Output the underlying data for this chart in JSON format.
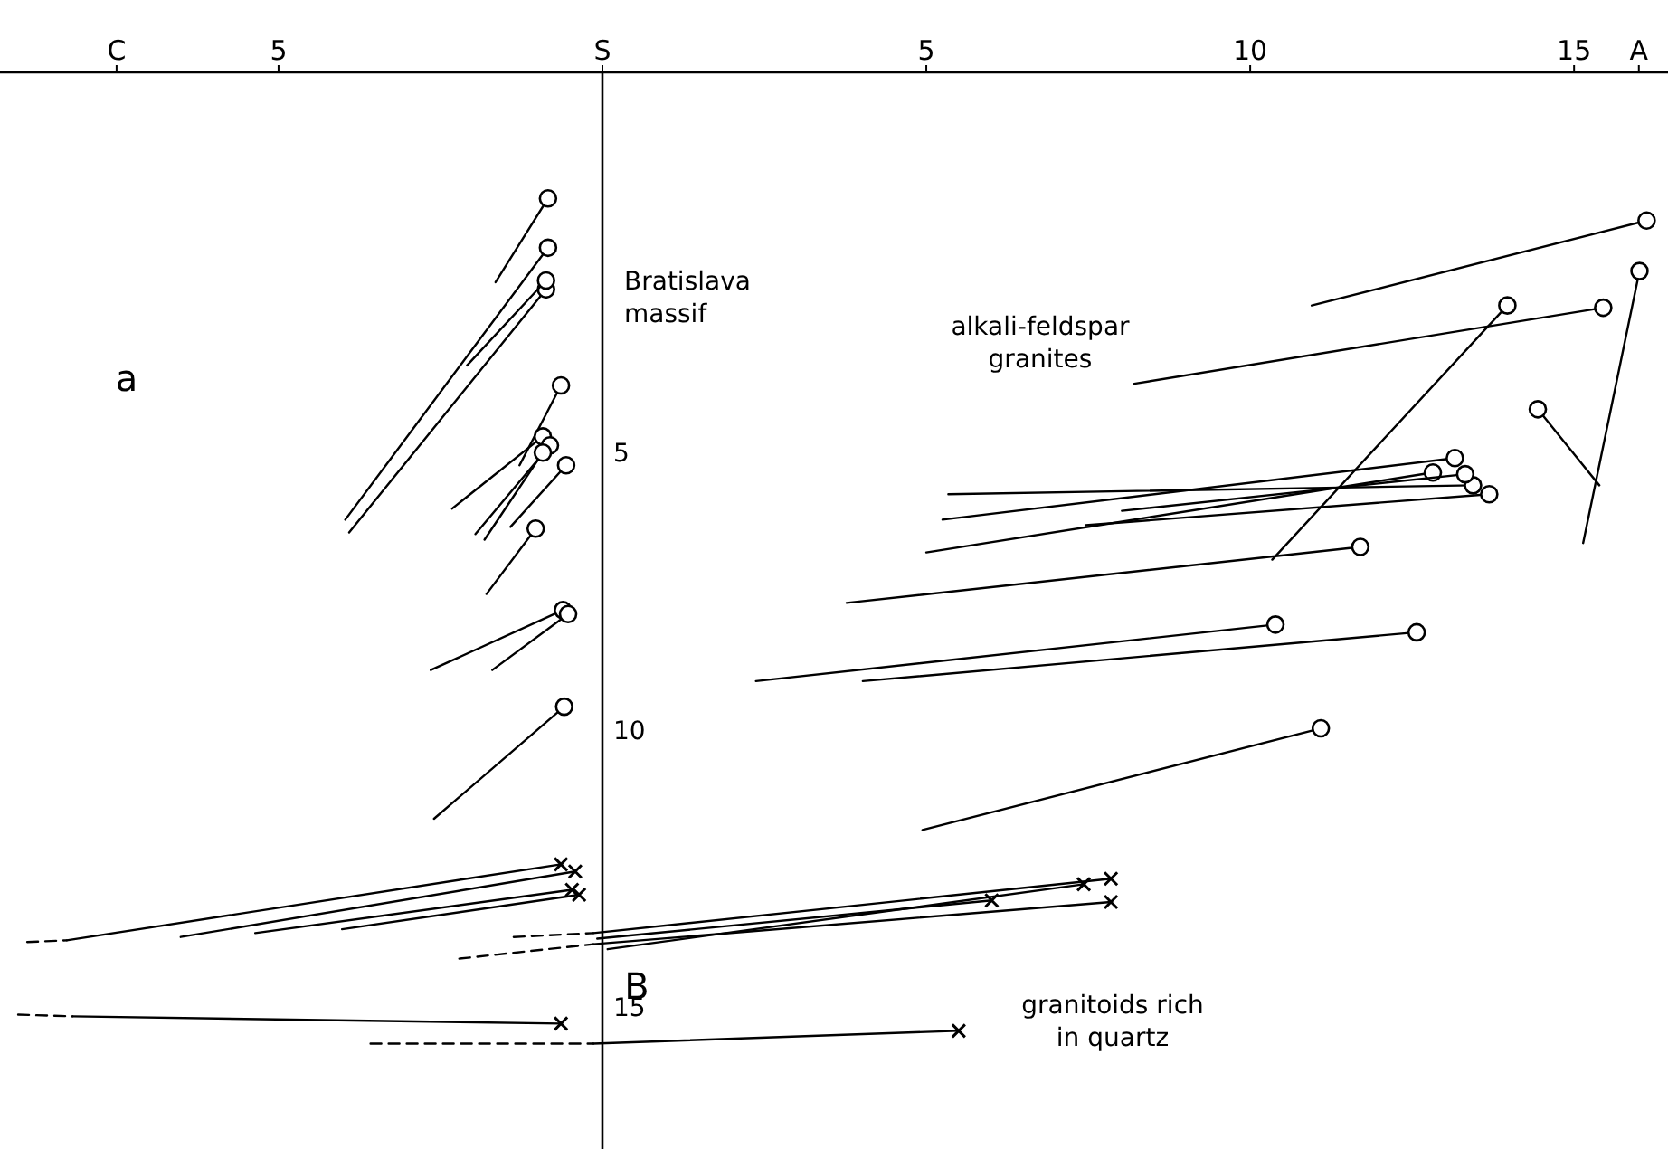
{
  "chart_data": {
    "type": "line",
    "xlim": [
      -9.3,
      16.45
    ],
    "ylim": [
      17.55,
      -1.85
    ],
    "xticks": [
      {
        "value": -7.5,
        "label": "C"
      },
      {
        "value": -5,
        "label": "5"
      },
      {
        "value": 0,
        "label": "S"
      },
      5,
      10,
      15,
      {
        "value": 16,
        "label": "A"
      }
    ],
    "yticks": [
      5,
      10,
      15
    ],
    "grid": false,
    "line_style": "solid",
    "annotations": [
      "Bratislava\nmassif",
      "alkali-feldspar\ngranites",
      "granitoids rich\nin quartz",
      "B",
      "a"
    ],
    "series": [
      {
        "color": "#000000",
        "marker": "circle",
        "x": [
          -1.65,
          -0.84
        ],
        "values": [
          1.93,
          0.42
        ]
      },
      {
        "color": "#000000",
        "marker": "circle",
        "x": [
          -3.97,
          -0.84
        ],
        "values": [
          6.21,
          1.31
        ]
      },
      {
        "color": "#000000",
        "marker": "circle",
        "x": [
          -3.91,
          -0.87
        ],
        "values": [
          6.44,
          2.06
        ]
      },
      {
        "color": "#000000",
        "marker": "circle",
        "x": [
          -2.09,
          -0.87
        ],
        "values": [
          3.43,
          1.9
        ]
      },
      {
        "color": "#000000",
        "marker": "circle",
        "x": [
          -1.28,
          -0.64
        ],
        "values": [
          5.23,
          3.79
        ]
      },
      {
        "color": "#000000",
        "marker": "circle",
        "x": [
          -2.32,
          -0.92
        ],
        "values": [
          6.01,
          4.71
        ]
      },
      {
        "color": "#000000",
        "marker": "circle",
        "x": [
          -1.96,
          -0.81
        ],
        "values": [
          6.47,
          4.87
        ]
      },
      {
        "color": "#000000",
        "marker": "circle",
        "x": [
          -1.82,
          -0.92
        ],
        "values": [
          6.57,
          5.0
        ]
      },
      {
        "color": "#000000",
        "marker": "circle",
        "x": [
          -1.42,
          -0.56
        ],
        "values": [
          6.34,
          5.23
        ]
      },
      {
        "color": "#000000",
        "marker": "circle",
        "x": [
          -1.79,
          -1.03
        ],
        "values": [
          7.55,
          6.37
        ]
      },
      {
        "color": "#000000",
        "marker": "circle",
        "x": [
          -2.65,
          -0.61
        ],
        "values": [
          8.92,
          7.84
        ]
      },
      {
        "color": "#000000",
        "marker": "circle",
        "x": [
          -1.7,
          -0.53
        ],
        "values": [
          8.92,
          7.91
        ]
      },
      {
        "color": "#000000",
        "marker": "circle",
        "x": [
          -2.6,
          -0.59
        ],
        "values": [
          11.6,
          9.58
        ]
      },
      {
        "color": "#000000",
        "marker": "circle",
        "x": [
          10.95,
          16.12
        ],
        "values": [
          2.35,
          0.82
        ]
      },
      {
        "color": "#000000",
        "marker": "circle",
        "x": [
          8.21,
          15.45
        ],
        "values": [
          3.76,
          2.39
        ]
      },
      {
        "color": "#000000",
        "marker": "circle",
        "x": [
          10.34,
          13.97
        ],
        "values": [
          6.93,
          2.35
        ]
      },
      {
        "color": "#000000",
        "marker": "circle",
        "x": [
          15.14,
          16.01
        ],
        "values": [
          6.63,
          1.73
        ]
      },
      {
        "color": "#000000",
        "marker": "circle",
        "x": [
          15.39,
          14.44
        ],
        "values": [
          5.59,
          4.22
        ]
      },
      {
        "color": "#000000",
        "marker": "circle",
        "x": [
          5.34,
          13.44
        ],
        "values": [
          5.75,
          5.59
        ]
      },
      {
        "color": "#000000",
        "marker": "circle",
        "x": [
          5.25,
          13.16
        ],
        "values": [
          6.21,
          5.1
        ]
      },
      {
        "color": "#000000",
        "marker": "circle",
        "x": [
          5.0,
          12.82
        ],
        "values": [
          6.8,
          5.36
        ]
      },
      {
        "color": "#000000",
        "marker": "circle",
        "x": [
          7.46,
          13.69
        ],
        "values": [
          6.31,
          5.75
        ]
      },
      {
        "color": "#000000",
        "marker": "circle",
        "x": [
          8.02,
          13.32
        ],
        "values": [
          6.05,
          5.39
        ]
      },
      {
        "color": "#000000",
        "marker": "circle",
        "x": [
          3.77,
          11.7
        ],
        "values": [
          7.71,
          6.7
        ]
      },
      {
        "color": "#000000",
        "marker": "circle",
        "x": [
          2.37,
          10.39
        ],
        "values": [
          9.12,
          8.1
        ]
      },
      {
        "color": "#000000",
        "marker": "circle",
        "x": [
          4.02,
          12.57
        ],
        "values": [
          9.12,
          8.24
        ]
      },
      {
        "color": "#000000",
        "marker": "circle",
        "x": [
          4.94,
          11.09
        ],
        "values": [
          11.8,
          9.97
        ]
      },
      {
        "color": "#000000",
        "marker": "none",
        "line_style": "dashed",
        "x": [
          -8.88,
          -8.27
        ],
        "values": [
          13.82,
          13.79
        ]
      },
      {
        "color": "#000000",
        "marker": "cross",
        "x": [
          -8.27,
          -0.64
        ],
        "values": [
          13.79,
          12.42
        ]
      },
      {
        "color": "#000000",
        "marker": "cross",
        "x": [
          -6.51,
          -0.42
        ],
        "values": [
          13.73,
          12.55
        ]
      },
      {
        "color": "#000000",
        "marker": "cross",
        "x": [
          -5.36,
          -0.47
        ],
        "values": [
          13.66,
          12.88
        ]
      },
      {
        "color": "#000000",
        "marker": "cross",
        "x": [
          -4.02,
          -0.36
        ],
        "values": [
          13.59,
          12.97
        ]
      },
      {
        "color": "#000000",
        "marker": "cross",
        "x": [
          -0.14,
          7.85
        ],
        "values": [
          13.66,
          12.68
        ]
      },
      {
        "color": "#000000",
        "marker": "cross",
        "x": [
          0.08,
          7.43
        ],
        "values": [
          13.95,
          12.78
        ]
      },
      {
        "color": "#000000",
        "marker": "cross",
        "x": [
          -0.08,
          6.01
        ],
        "values": [
          13.76,
          13.07
        ]
      },
      {
        "color": "#000000",
        "marker": "cross",
        "x": [
          -0.14,
          7.85
        ],
        "values": [
          13.86,
          13.1
        ]
      },
      {
        "color": "#000000",
        "marker": "none",
        "line_style": "dashed",
        "x": [
          -1.37,
          -0.14
        ],
        "values": [
          13.73,
          13.66
        ]
      },
      {
        "color": "#000000",
        "marker": "none",
        "line_style": "dashed",
        "x": [
          -2.21,
          -0.14
        ],
        "values": [
          14.12,
          13.86
        ]
      },
      {
        "color": "#000000",
        "marker": "none",
        "line_style": "dashed",
        "x": [
          -9.02,
          -8.18
        ],
        "values": [
          15.13,
          15.16
        ]
      },
      {
        "color": "#000000",
        "marker": "cross",
        "x": [
          -8.18,
          -0.64
        ],
        "values": [
          15.16,
          15.29
        ]
      },
      {
        "color": "#000000",
        "marker": "none",
        "line_style": "dashed",
        "x": [
          -3.58,
          -0.14
        ],
        "values": [
          15.65,
          15.65
        ]
      },
      {
        "color": "#000000",
        "marker": "cross",
        "x": [
          -0.14,
          5.5
        ],
        "values": [
          15.65,
          15.42
        ]
      }
    ]
  }
}
